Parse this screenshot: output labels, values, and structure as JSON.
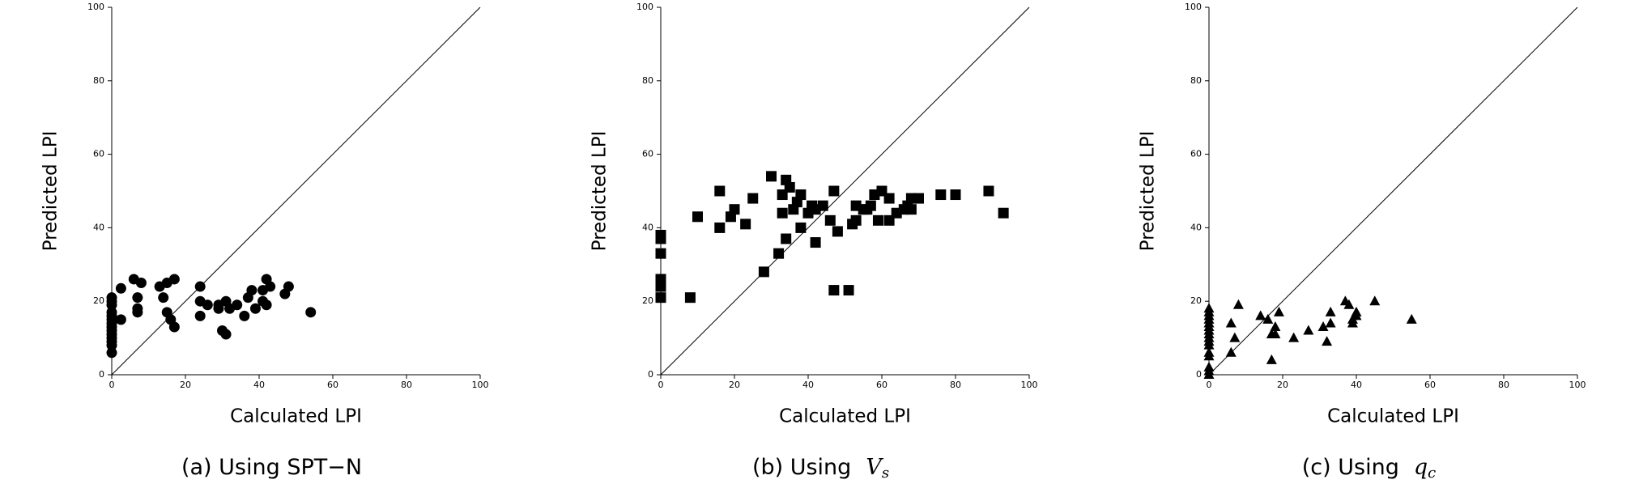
{
  "chart_data": [
    {
      "type": "scatter",
      "marker": "circle",
      "color": "#000000",
      "xlabel": "Calculated LPI",
      "ylabel": "Predicted LPI",
      "caption": {
        "text": "(a) Using SPT−N"
      },
      "xlim": [
        0,
        100
      ],
      "ylim": [
        0,
        100
      ],
      "xticks": [
        0,
        20,
        40,
        60,
        80,
        100
      ],
      "yticks": [
        0,
        20,
        40,
        60,
        80,
        100
      ],
      "x": [
        0,
        0,
        0,
        0,
        0,
        0,
        0,
        0,
        0,
        0,
        0,
        0,
        0,
        0,
        2.5,
        2.5,
        6,
        8,
        7,
        7,
        7,
        13,
        15,
        17,
        14,
        15,
        16,
        17,
        24,
        24,
        24,
        26,
        29,
        29,
        30,
        31,
        31,
        32,
        34,
        36,
        37,
        38,
        39,
        41,
        41,
        42,
        42,
        43,
        47,
        48,
        54
      ],
      "y": [
        6,
        8,
        9,
        10,
        11,
        12,
        13,
        14,
        15,
        16,
        17,
        19,
        20,
        21,
        23.5,
        15,
        26,
        25,
        21,
        18,
        17,
        24,
        25,
        26,
        21,
        17,
        15,
        13,
        24,
        16,
        20,
        19,
        19,
        18,
        12,
        11,
        20,
        18,
        19,
        16,
        21,
        23,
        18,
        20,
        23,
        26,
        19,
        24,
        22,
        24,
        17
      ]
    },
    {
      "type": "scatter",
      "marker": "square",
      "color": "#000000",
      "xlabel": "Calculated LPI",
      "ylabel": "Predicted LPI",
      "caption": {
        "text": "(b) Using",
        "symbol": "V",
        "subscript": "s"
      },
      "xlim": [
        0,
        100
      ],
      "ylim": [
        0,
        100
      ],
      "xticks": [
        0,
        20,
        40,
        60,
        80,
        100
      ],
      "yticks": [
        0,
        20,
        40,
        60,
        80,
        100
      ],
      "x": [
        0,
        0,
        0,
        0,
        0,
        0,
        8,
        10,
        16,
        16,
        19,
        20,
        23,
        25,
        28,
        30,
        32,
        33,
        33,
        34,
        34,
        35,
        36,
        37,
        38,
        38,
        40,
        41,
        42,
        42,
        44,
        46,
        47,
        47,
        48,
        51,
        52,
        53,
        53,
        55,
        56,
        57,
        58,
        59,
        60,
        62,
        62,
        64,
        66,
        67,
        68,
        68,
        70,
        76,
        80,
        89,
        93
      ],
      "y": [
        21,
        24,
        26,
        33,
        37,
        38,
        21,
        43,
        40,
        50,
        43,
        45,
        41,
        48,
        28,
        54,
        33,
        44,
        49,
        37,
        53,
        51,
        45,
        47,
        49,
        40,
        44,
        46,
        36,
        45,
        46,
        42,
        50,
        23,
        39,
        23,
        41,
        42,
        46,
        45,
        45,
        46,
        49,
        42,
        50,
        42,
        48,
        44,
        45,
        46,
        48,
        45,
        48,
        49,
        49,
        50,
        44
      ]
    },
    {
      "type": "scatter",
      "marker": "triangle",
      "color": "#000000",
      "xlabel": "Calculated LPI",
      "ylabel": "Predicted LPI",
      "caption": {
        "text": "(c) Using",
        "symbol": "q",
        "subscript": "c"
      },
      "xlim": [
        0,
        100
      ],
      "ylim": [
        0,
        100
      ],
      "xticks": [
        0,
        20,
        40,
        60,
        80,
        100
      ],
      "yticks": [
        0,
        20,
        40,
        60,
        80,
        100
      ],
      "x": [
        0,
        0,
        0,
        0,
        0,
        0,
        0,
        0,
        0,
        0,
        0,
        0,
        0,
        0,
        0,
        0,
        6,
        7,
        8,
        6,
        14,
        16,
        17,
        17,
        18,
        19,
        18,
        23,
        27,
        31,
        32,
        33,
        33,
        37,
        38,
        39,
        39,
        40,
        40,
        45,
        55
      ],
      "y": [
        0,
        1,
        2,
        5,
        6,
        8,
        9,
        10,
        11,
        12,
        13,
        14,
        15,
        16,
        17,
        18,
        6,
        10,
        19,
        14,
        16,
        15,
        11,
        4,
        13,
        17,
        11,
        10,
        12,
        13,
        9,
        14,
        17,
        20,
        19,
        15,
        14,
        17,
        16,
        20,
        15
      ]
    }
  ]
}
